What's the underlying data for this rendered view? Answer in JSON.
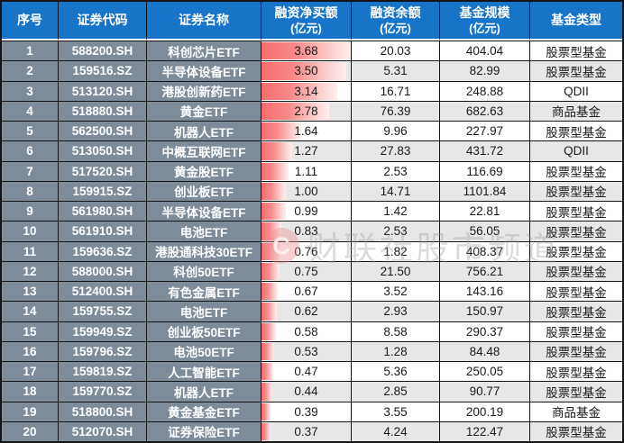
{
  "chart_data": {
    "type": "table",
    "columns": [
      {
        "title": "序号",
        "sub": ""
      },
      {
        "title": "证券代码",
        "sub": ""
      },
      {
        "title": "证券名称",
        "sub": ""
      },
      {
        "title": "融资净买额",
        "sub": "(亿元)"
      },
      {
        "title": "融资余额",
        "sub": "(亿元)"
      },
      {
        "title": "基金规模",
        "sub": "(亿元)"
      },
      {
        "title": "基金类型",
        "sub": ""
      }
    ],
    "rows": [
      [
        "1",
        "588200.SH",
        "科创芯片ETF",
        "3.68",
        "20.03",
        "404.04",
        "股票型基金"
      ],
      [
        "2",
        "159516.SZ",
        "半导体设备ETF",
        "3.50",
        "5.31",
        "82.99",
        "股票型基金"
      ],
      [
        "3",
        "513120.SH",
        "港股创新药ETF",
        "3.14",
        "16.71",
        "248.88",
        "QDII"
      ],
      [
        "4",
        "518880.SH",
        "黄金ETF",
        "2.78",
        "76.39",
        "682.63",
        "商品基金"
      ],
      [
        "5",
        "562500.SH",
        "机器人ETF",
        "1.64",
        "9.96",
        "227.97",
        "股票型基金"
      ],
      [
        "6",
        "513050.SH",
        "中概互联网ETF",
        "1.27",
        "27.83",
        "431.72",
        "QDII"
      ],
      [
        "7",
        "517520.SH",
        "黄金股ETF",
        "1.11",
        "2.53",
        "116.69",
        "股票型基金"
      ],
      [
        "8",
        "159915.SZ",
        "创业板ETF",
        "1.00",
        "14.71",
        "1101.84",
        "股票型基金"
      ],
      [
        "9",
        "561980.SH",
        "半导体设备ETF",
        "0.99",
        "1.42",
        "22.81",
        "股票型基金"
      ],
      [
        "10",
        "561910.SH",
        "电池ETF",
        "0.83",
        "2.53",
        "56.05",
        "股票型基金"
      ],
      [
        "11",
        "159636.SZ",
        "港股通科技30ETF",
        "0.76",
        "1.82",
        "408.37",
        "股票型基金"
      ],
      [
        "12",
        "588000.SH",
        "科创50ETF",
        "0.75",
        "21.50",
        "756.21",
        "股票型基金"
      ],
      [
        "13",
        "512400.SH",
        "有色金属ETF",
        "0.67",
        "3.52",
        "143.16",
        "股票型基金"
      ],
      [
        "14",
        "159755.SZ",
        "电池ETF",
        "0.62",
        "2.93",
        "150.97",
        "股票型基金"
      ],
      [
        "15",
        "159949.SZ",
        "创业板50ETF",
        "0.58",
        "8.58",
        "290.37",
        "股票型基金"
      ],
      [
        "16",
        "159796.SZ",
        "电池50ETF",
        "0.53",
        "1.28",
        "84.48",
        "股票型基金"
      ],
      [
        "17",
        "159819.SZ",
        "人工智能ETF",
        "0.47",
        "5.36",
        "250.05",
        "股票型基金"
      ],
      [
        "18",
        "159770.SZ",
        "机器人ETF",
        "0.44",
        "2.85",
        "90.77",
        "股票型基金"
      ],
      [
        "19",
        "518800.SH",
        "黄金基金ETF",
        "0.39",
        "3.55",
        "200.19",
        "商品基金"
      ],
      [
        "20",
        "512070.SH",
        "证券保险ETF",
        "0.37",
        "4.24",
        "122.47",
        "股票型基金"
      ]
    ],
    "bar": {
      "column_index": 3,
      "max": 3.68,
      "color": "#f76c6c"
    },
    "layout": {
      "grid": "black-borders",
      "alternating_rows": true
    }
  },
  "watermark": {
    "logo_letter": "C",
    "text": "财联社股市频道"
  },
  "colors": {
    "header_blue": "#1874c8",
    "left_columns_gray": "#7e8c99",
    "alt_row_gray": "#e7e7e7",
    "bar_red": "#f76c6c",
    "border_black": "#141414",
    "header_text": "#ffffff",
    "value_text": "#1a1a1a"
  }
}
